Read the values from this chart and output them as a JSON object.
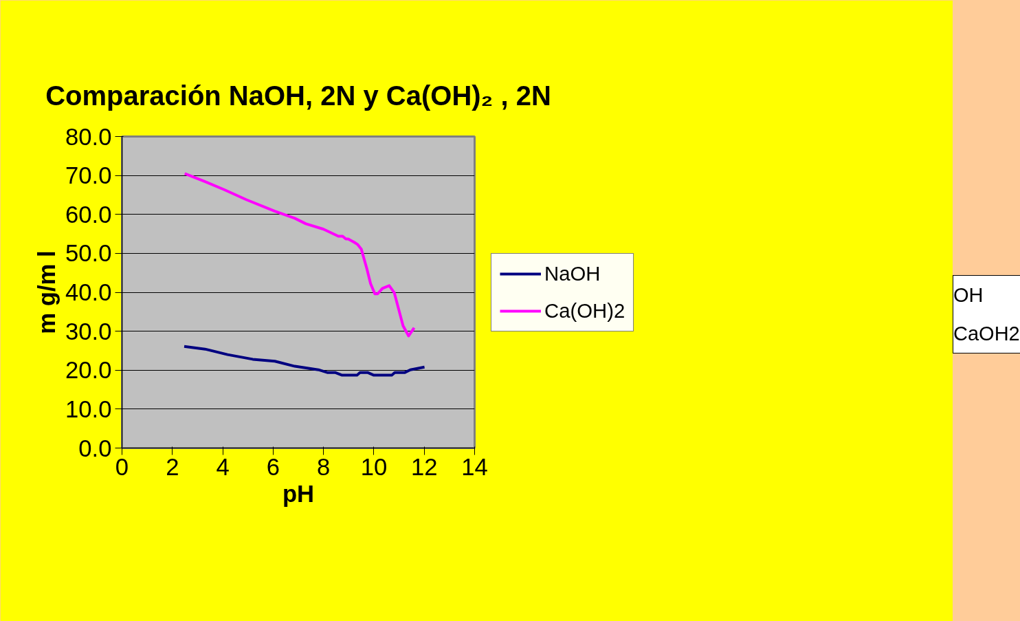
{
  "chart_data": {
    "type": "line",
    "title": "Comparación NaOH, 2N y Ca(OH)₂ , 2N",
    "xlabel": "pH",
    "ylabel": "m g/m l",
    "xlim": [
      0,
      14
    ],
    "xticks": [
      0,
      2,
      4,
      6,
      8,
      10,
      12,
      14
    ],
    "ylim": [
      0,
      80
    ],
    "yticks": [
      {
        "value": 0,
        "label": "0.0"
      },
      {
        "value": 10,
        "label": "10.0"
      },
      {
        "value": 20,
        "label": "20.0"
      },
      {
        "value": 30,
        "label": "30.0"
      },
      {
        "value": 40,
        "label": "40.0"
      },
      {
        "value": 50,
        "label": "50.0"
      },
      {
        "value": 60,
        "label": "60.0"
      },
      {
        "value": 70,
        "label": "70.0"
      },
      {
        "value": 80,
        "label": "80.0"
      }
    ],
    "grid": "y",
    "legend": "right",
    "marker": "none",
    "line_style": "solid",
    "annotations": [
      "OH",
      "CaOH2"
    ],
    "series": [
      {
        "name": "NaOH",
        "color": "#000080",
        "x": [
          2.47,
          3.3,
          4.19,
          5.19,
          6.07,
          6.86,
          7.8,
          8.15,
          8.46,
          8.74,
          9.33,
          9.45,
          9.75,
          10.0,
          10.71,
          10.83,
          11.23,
          11.45,
          12.01
        ],
        "values": [
          26.1,
          25.4,
          24.0,
          22.8,
          22.3,
          21.0,
          20.1,
          19.4,
          19.4,
          18.7,
          18.7,
          19.4,
          19.4,
          18.7,
          18.7,
          19.4,
          19.4,
          20.1,
          20.8
        ]
      },
      {
        "name": "Ca(OH)2",
        "color": "#ff00ff",
        "x": [
          2.49,
          3.3,
          4.04,
          4.93,
          6.07,
          6.86,
          7.3,
          8.0,
          8.59,
          8.76,
          8.89,
          8.98,
          9.23,
          9.35,
          9.5,
          9.72,
          9.87,
          10.04,
          10.15,
          10.34,
          10.61,
          10.81,
          11.16,
          11.38,
          11.6
        ],
        "values": [
          70.5,
          68.4,
          66.4,
          63.8,
          60.8,
          59.0,
          57.6,
          56.2,
          54.4,
          54.4,
          53.7,
          53.7,
          52.8,
          52.3,
          51.1,
          46.1,
          42.2,
          39.6,
          39.6,
          41.0,
          41.7,
          39.9,
          31.4,
          28.8,
          30.9
        ]
      }
    ]
  }
}
